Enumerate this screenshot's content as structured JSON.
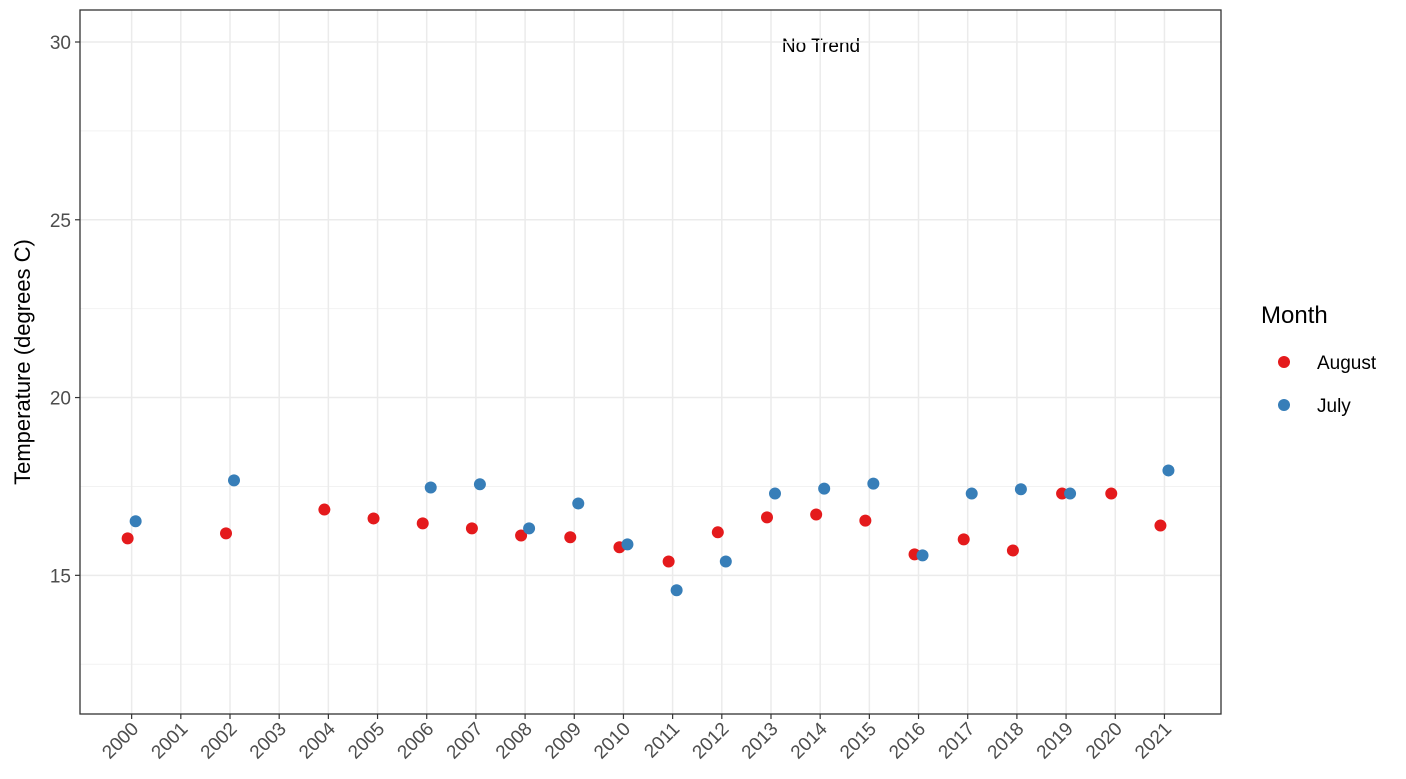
{
  "chart_data": {
    "type": "scatter",
    "annotation": "No Trend",
    "y_label": "Temperature (degrees C)",
    "legend_title": "Month",
    "legend_position": "right",
    "grid": true,
    "x": [
      2000,
      2001,
      2002,
      2003,
      2004,
      2005,
      2006,
      2007,
      2008,
      2009,
      2010,
      2011,
      2012,
      2013,
      2014,
      2015,
      2016,
      2017,
      2018,
      2019,
      2020,
      2021
    ],
    "xlim": [
      1998.95,
      2022.15
    ],
    "xticks": [
      2000,
      2001,
      2002,
      2003,
      2004,
      2005,
      2006,
      2007,
      2008,
      2009,
      2010,
      2011,
      2012,
      2013,
      2014,
      2015,
      2016,
      2017,
      2018,
      2019,
      2020,
      2021
    ],
    "ylim": [
      11.1,
      30.9
    ],
    "yticks": [
      15,
      20,
      25,
      30
    ],
    "series": [
      {
        "name": "August",
        "color": "#E41A1C",
        "values": [
          16.04,
          null,
          16.18,
          null,
          16.85,
          16.6,
          16.46,
          16.32,
          16.12,
          16.07,
          15.79,
          15.39,
          16.21,
          16.63,
          16.71,
          16.54,
          15.59,
          16.01,
          15.7,
          17.3,
          17.3,
          16.4
        ]
      },
      {
        "name": "July",
        "color": "#377EB8",
        "values": [
          16.52,
          null,
          17.67,
          null,
          null,
          null,
          17.47,
          17.56,
          16.32,
          17.02,
          15.87,
          14.58,
          15.39,
          17.3,
          17.44,
          17.58,
          15.56,
          17.3,
          17.42,
          17.3,
          null,
          17.95
        ]
      }
    ]
  }
}
